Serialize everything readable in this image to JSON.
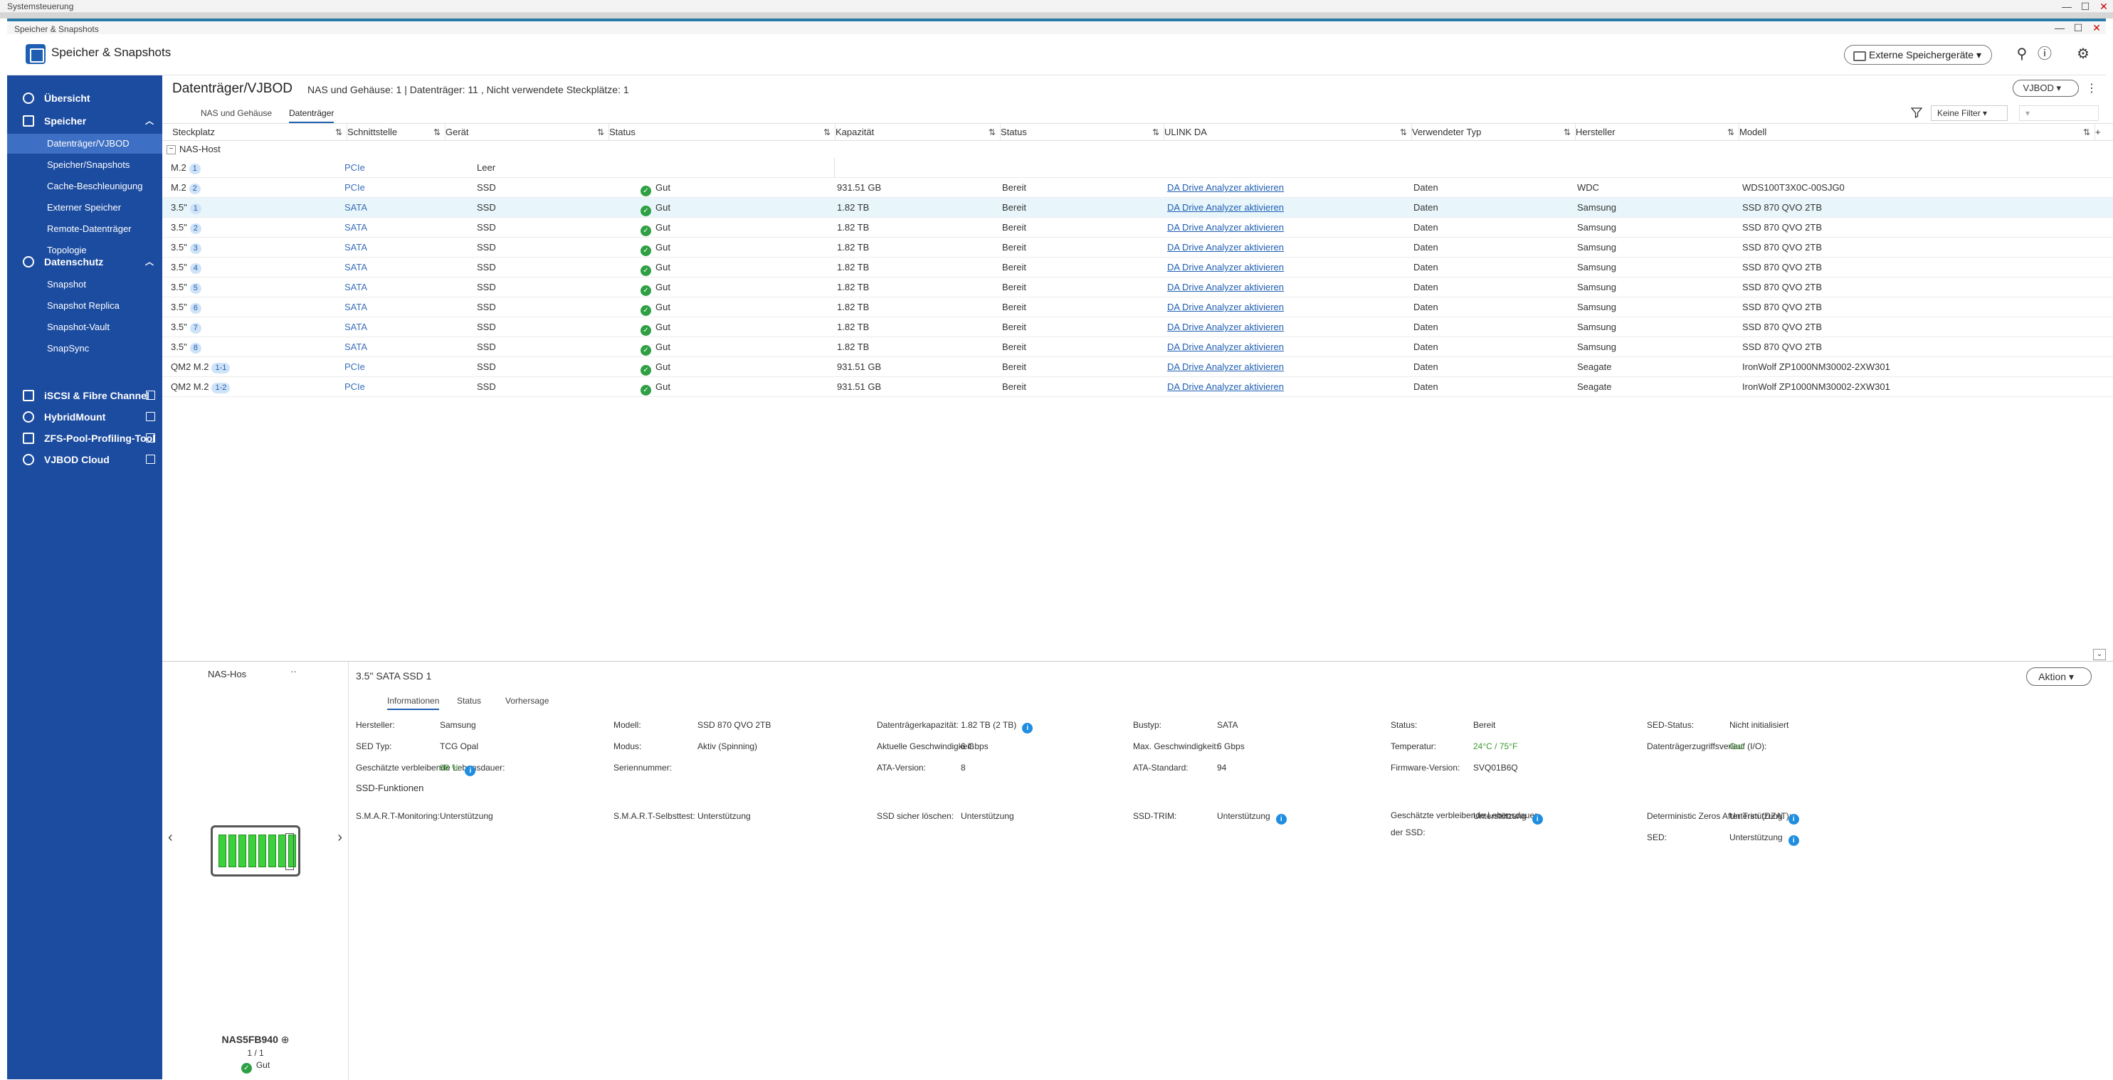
{
  "outer_window": {
    "title": "Systemsteuerung"
  },
  "inner_window": {
    "title": "Speicher & Snapshots"
  },
  "app": {
    "title": "Speicher & Snapshots",
    "ext_button": "Externe Speichergeräte"
  },
  "sidebar": {
    "items": [
      {
        "label": "Übersicht",
        "level": "top",
        "icon": "gauge-icon"
      },
      {
        "label": "Speicher",
        "level": "top",
        "icon": "database-icon",
        "expanded": true
      },
      {
        "label": "Datenträger/VJBOD",
        "level": "sub",
        "active": true
      },
      {
        "label": "Speicher/Snapshots",
        "level": "sub"
      },
      {
        "label": "Cache-Beschleunigung",
        "level": "sub"
      },
      {
        "label": "Externer Speicher",
        "level": "sub"
      },
      {
        "label": "Remote-Datenträger",
        "level": "sub"
      },
      {
        "label": "Topologie",
        "level": "sub"
      },
      {
        "label": "Datenschutz",
        "level": "top",
        "icon": "shield-icon",
        "expanded": true
      },
      {
        "label": "Snapshot",
        "level": "sub"
      },
      {
        "label": "Snapshot Replica",
        "level": "sub"
      },
      {
        "label": "Snapshot-Vault",
        "level": "sub"
      },
      {
        "label": "SnapSync",
        "level": "sub"
      },
      {
        "label": "iSCSI & Fibre Channel",
        "level": "top",
        "icon": "iscsi-icon",
        "external": true
      },
      {
        "label": "HybridMount",
        "level": "top",
        "icon": "cloud-mount-icon",
        "external": true
      },
      {
        "label": "ZFS-Pool-Profiling-Tool",
        "level": "top",
        "icon": "pool-icon",
        "external": true
      },
      {
        "label": "VJBOD Cloud",
        "level": "top",
        "icon": "vjbod-cloud-icon",
        "external": true
      }
    ]
  },
  "page": {
    "title": "Datenträger/VJBOD",
    "subtitle": "NAS und Gehäuse: 1  |  Datenträger: 11 , Nicht verwendete Steckplätze: 1",
    "vjbod_button": "VJBOD",
    "tabs": [
      "NAS und Gehäuse",
      "Datenträger"
    ],
    "active_tab": "Datenträger",
    "filter_value": "Keine Filter"
  },
  "table": {
    "columns": [
      "Steckplatz",
      "Schnittstelle",
      "Gerät",
      "Status",
      "Kapazität",
      "Status",
      "ULINK DA",
      "Verwendeter Typ",
      "Hersteller",
      "Modell"
    ],
    "group": "NAS-Host",
    "rows": [
      {
        "slot": "M.2",
        "badge": "1",
        "iface": "PCIe",
        "device": "Leer",
        "status": "",
        "cap": "",
        "state": "",
        "ulink": "",
        "type": "",
        "vendor": "",
        "model": ""
      },
      {
        "slot": "M.2",
        "badge": "2",
        "iface": "PCIe",
        "device": "SSD",
        "status": "Gut",
        "cap": "931.51 GB",
        "state": "Bereit",
        "ulink": "DA Drive Analyzer aktivieren",
        "type": "Daten",
        "vendor": "WDC",
        "model": "WDS100T3X0C-00SJG0"
      },
      {
        "slot": "3.5\"",
        "badge": "1",
        "iface": "SATA",
        "device": "SSD",
        "status": "Gut",
        "cap": "1.82 TB",
        "state": "Bereit",
        "ulink": "DA Drive Analyzer aktivieren",
        "type": "Daten",
        "vendor": "Samsung",
        "model": "SSD 870 QVO 2TB",
        "selected": true
      },
      {
        "slot": "3.5\"",
        "badge": "2",
        "iface": "SATA",
        "device": "SSD",
        "status": "Gut",
        "cap": "1.82 TB",
        "state": "Bereit",
        "ulink": "DA Drive Analyzer aktivieren",
        "type": "Daten",
        "vendor": "Samsung",
        "model": "SSD 870 QVO 2TB"
      },
      {
        "slot": "3.5\"",
        "badge": "3",
        "iface": "SATA",
        "device": "SSD",
        "status": "Gut",
        "cap": "1.82 TB",
        "state": "Bereit",
        "ulink": "DA Drive Analyzer aktivieren",
        "type": "Daten",
        "vendor": "Samsung",
        "model": "SSD 870 QVO 2TB"
      },
      {
        "slot": "3.5\"",
        "badge": "4",
        "iface": "SATA",
        "device": "SSD",
        "status": "Gut",
        "cap": "1.82 TB",
        "state": "Bereit",
        "ulink": "DA Drive Analyzer aktivieren",
        "type": "Daten",
        "vendor": "Samsung",
        "model": "SSD 870 QVO 2TB"
      },
      {
        "slot": "3.5\"",
        "badge": "5",
        "iface": "SATA",
        "device": "SSD",
        "status": "Gut",
        "cap": "1.82 TB",
        "state": "Bereit",
        "ulink": "DA Drive Analyzer aktivieren",
        "type": "Daten",
        "vendor": "Samsung",
        "model": "SSD 870 QVO 2TB"
      },
      {
        "slot": "3.5\"",
        "badge": "6",
        "iface": "SATA",
        "device": "SSD",
        "status": "Gut",
        "cap": "1.82 TB",
        "state": "Bereit",
        "ulink": "DA Drive Analyzer aktivieren",
        "type": "Daten",
        "vendor": "Samsung",
        "model": "SSD 870 QVO 2TB"
      },
      {
        "slot": "3.5\"",
        "badge": "7",
        "iface": "SATA",
        "device": "SSD",
        "status": "Gut",
        "cap": "1.82 TB",
        "state": "Bereit",
        "ulink": "DA Drive Analyzer aktivieren",
        "type": "Daten",
        "vendor": "Samsung",
        "model": "SSD 870 QVO 2TB"
      },
      {
        "slot": "3.5\"",
        "badge": "8",
        "iface": "SATA",
        "device": "SSD",
        "status": "Gut",
        "cap": "1.82 TB",
        "state": "Bereit",
        "ulink": "DA Drive Analyzer aktivieren",
        "type": "Daten",
        "vendor": "Samsung",
        "model": "SSD 870 QVO 2TB"
      },
      {
        "slot": "QM2 M.2",
        "badge": "1-1",
        "iface": "PCIe",
        "device": "SSD",
        "status": "Gut",
        "cap": "931.51 GB",
        "state": "Bereit",
        "ulink": "DA Drive Analyzer aktivieren",
        "type": "Daten",
        "vendor": "Seagate",
        "model": "IronWolf ZP1000NM30002-2XW301"
      },
      {
        "slot": "QM2 M.2",
        "badge": "1-2",
        "iface": "PCIe",
        "device": "SSD",
        "status": "Gut",
        "cap": "931.51 GB",
        "state": "Bereit",
        "ulink": "DA Drive Analyzer aktivieren",
        "type": "Daten",
        "vendor": "Seagate",
        "model": "IronWolf ZP1000NM30002-2XW301"
      }
    ]
  },
  "nas_panel": {
    "header": "NAS-Hos",
    "name": "NAS5FB940",
    "count": "1 / 1",
    "status": "Gut"
  },
  "detail": {
    "title": "3.5\" SATA SSD 1",
    "action_button": "Aktion",
    "tabs": [
      "Informationen",
      "Status",
      "Vorhersage"
    ],
    "info": [
      {
        "label": "Hersteller:",
        "value": "Samsung"
      },
      {
        "label": "Modell:",
        "value": "SSD 870 QVO 2TB"
      },
      {
        "label": "Datenträgerkapazität:",
        "value": "1.82 TB (2 TB)",
        "info": true
      },
      {
        "label": "Bustyp:",
        "value": "SATA"
      },
      {
        "label": "Status:",
        "value": "Bereit"
      },
      {
        "label": "SED-Status:",
        "value": "Nicht initialisiert"
      },
      {
        "label": "SED Typ:",
        "value": "TCG Opal"
      },
      {
        "label": "Modus:",
        "value": "Aktiv (Spinning)"
      },
      {
        "label": "Aktuelle Geschwindigkeit:",
        "value": "6 Gbps"
      },
      {
        "label": "Max. Geschwindigkeit:",
        "value": "6 Gbps"
      },
      {
        "label": "Temperatur:",
        "value": "24°C / 75°F",
        "green": true
      },
      {
        "label": "Datenträgerzugriffsverlauf (I/O):",
        "value": "Gut",
        "green": true
      },
      {
        "label": "Geschätzte verbleibende Lebensdauer:",
        "value": "98 %",
        "green": true,
        "info": true
      },
      {
        "label": "Seriennummer:",
        "value": ""
      },
      {
        "label": "ATA-Version:",
        "value": "8"
      },
      {
        "label": "ATA-Standard:",
        "value": "94"
      },
      {
        "label": "Firmware-Version:",
        "value": "SVQ01B6Q"
      }
    ],
    "ssd_section": "SSD-Funktionen",
    "ssd": [
      {
        "label": "S.M.A.R.T-Monitoring:",
        "value": "Unterstützung"
      },
      {
        "label": "S.M.A.R.T-Selbsttest:",
        "value": "Unterstützung"
      },
      {
        "label": "SSD sicher löschen:",
        "value": "Unterstützung"
      },
      {
        "label": "SSD-TRIM:",
        "value": "Unterstützung",
        "info": true
      },
      {
        "label": "Geschätzte verbleibende Lebensdauer der SSD:",
        "value": "Unterstützung",
        "info": true
      },
      {
        "label": "Deterministic Zeros After Trim (DZAT):",
        "value": "Unterstützung",
        "info": true
      },
      {
        "label": "SED:",
        "value": "Unterstützung",
        "info": true
      }
    ]
  },
  "colors": {
    "sidebar": "#1c4ca0",
    "accent": "#1f5fb3",
    "ok": "#2ea043",
    "selected_row": "#e8f6fb"
  }
}
